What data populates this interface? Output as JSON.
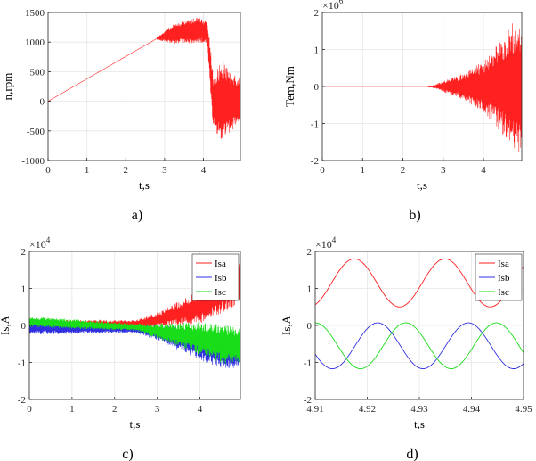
{
  "colors": {
    "red": "#ff2020",
    "blue": "#3030e0",
    "green": "#18dd18",
    "grid": "#e6e6e6",
    "axis": "#262626"
  },
  "chart_data": [
    {
      "id": "a",
      "type": "line",
      "caption": "a)",
      "xlabel": "t,s",
      "ylabel": "n,rpm",
      "xlim": [
        0,
        4.95
      ],
      "ylim": [
        -1000,
        1500
      ],
      "xticks": [
        "0",
        "1",
        "2",
        "3",
        "4"
      ],
      "xtick_values": [
        0,
        1,
        2,
        3,
        4
      ],
      "yticks": [
        "1500",
        "1000",
        "500",
        "0",
        "-500",
        "-1000"
      ],
      "ytick_values": [
        1500,
        1000,
        500,
        0,
        -500,
        -1000
      ],
      "exponent": "",
      "series": [
        {
          "name": "n",
          "color": "red",
          "model": "speed",
          "keypoints": [
            [
              0,
              0
            ],
            [
              2.8,
              1060
            ],
            [
              3.3,
              1150
            ],
            [
              3.9,
              1200
            ],
            [
              4.1,
              1150
            ],
            [
              4.25,
              0
            ],
            [
              4.7,
              0
            ],
            [
              4.95,
              0
            ]
          ],
          "envelope": [
            [
              2.8,
              20
            ],
            [
              3.2,
              160
            ],
            [
              3.8,
              220
            ],
            [
              4.1,
              200
            ],
            [
              4.2,
              400
            ],
            [
              4.5,
              700
            ],
            [
              4.7,
              500
            ],
            [
              4.95,
              400
            ]
          ]
        }
      ]
    },
    {
      "id": "b",
      "type": "line",
      "caption": "b)",
      "xlabel": "t,s",
      "ylabel": "Tem,Nm",
      "xlim": [
        0,
        4.95
      ],
      "ylim": [
        -2,
        2
      ],
      "xticks": [
        "0",
        "1",
        "2",
        "3",
        "4"
      ],
      "xtick_values": [
        0,
        1,
        2,
        3,
        4
      ],
      "yticks": [
        "2",
        "1",
        "0",
        "-1",
        "-2"
      ],
      "ytick_values": [
        2,
        1,
        0,
        -1,
        -2
      ],
      "exponent": "×10",
      "exponent_power": "6",
      "series": [
        {
          "name": "Tem",
          "color": "red",
          "model": "torque",
          "envelope": [
            [
              0,
              0
            ],
            [
              2.6,
              0
            ],
            [
              2.8,
              0.05
            ],
            [
              3.0,
              0.15
            ],
            [
              3.5,
              0.35
            ],
            [
              4.0,
              0.7
            ],
            [
              4.4,
              1.2
            ],
            [
              4.7,
              1.7
            ],
            [
              4.95,
              1.9
            ]
          ]
        }
      ]
    },
    {
      "id": "c",
      "type": "line",
      "caption": "c)",
      "xlabel": "t,s",
      "ylabel": "Is,A",
      "xlim": [
        0,
        4.95
      ],
      "ylim": [
        -2,
        2
      ],
      "xticks": [
        "0",
        "1",
        "2",
        "3",
        "4"
      ],
      "xtick_values": [
        0,
        1,
        2,
        3,
        4
      ],
      "yticks": [
        "2",
        "1",
        "0",
        "-1",
        "-2"
      ],
      "ytick_values": [
        2,
        1,
        0,
        -1,
        -2
      ],
      "exponent": "×10",
      "exponent_power": "4",
      "legend": [
        "Isa",
        "Isb",
        "Isc"
      ],
      "legend_position": "top-right",
      "series": [
        {
          "name": "Isa",
          "color": "red",
          "model": "phase_long",
          "offset": [
            [
              0,
              0
            ],
            [
              2.5,
              0.05
            ],
            [
              3.0,
              0.15
            ],
            [
              4.0,
              0.5
            ],
            [
              4.5,
              0.9
            ],
            [
              4.95,
              1.2
            ]
          ],
          "envelope": [
            [
              0,
              0.15
            ],
            [
              2.5,
              0.1
            ],
            [
              3.0,
              0.2
            ],
            [
              4.0,
              0.45
            ],
            [
              4.5,
              0.6
            ],
            [
              4.95,
              0.6
            ]
          ]
        },
        {
          "name": "Isb",
          "color": "blue",
          "model": "phase_long",
          "offset": [
            [
              0,
              -0.05
            ],
            [
              2.5,
              -0.1
            ],
            [
              3.0,
              -0.2
            ],
            [
              4.0,
              -0.5
            ],
            [
              4.5,
              -0.7
            ],
            [
              4.95,
              -0.75
            ]
          ],
          "envelope": [
            [
              0,
              0.2
            ],
            [
              2.5,
              0.1
            ],
            [
              3.0,
              0.2
            ],
            [
              4.0,
              0.45
            ],
            [
              4.5,
              0.5
            ],
            [
              4.95,
              0.45
            ]
          ]
        },
        {
          "name": "Isc",
          "color": "green",
          "model": "phase_long",
          "offset": [
            [
              0,
              0.1
            ],
            [
              2.5,
              -0.05
            ],
            [
              3.0,
              -0.15
            ],
            [
              4.0,
              -0.35
            ],
            [
              4.5,
              -0.5
            ],
            [
              4.95,
              -0.55
            ]
          ],
          "envelope": [
            [
              0,
              0.15
            ],
            [
              2.5,
              0.1
            ],
            [
              3.0,
              0.2
            ],
            [
              4.0,
              0.45
            ],
            [
              4.5,
              0.55
            ],
            [
              4.95,
              0.5
            ]
          ]
        }
      ]
    },
    {
      "id": "d",
      "type": "line",
      "caption": "d)",
      "xlabel": "t,s",
      "ylabel": "Is,A",
      "xlim": [
        4.91,
        4.95
      ],
      "ylim": [
        -2,
        2
      ],
      "xticks": [
        "4.91",
        "4.92",
        "4.93",
        "4.94",
        "4.95"
      ],
      "xtick_values": [
        4.91,
        4.92,
        4.93,
        4.94,
        4.95
      ],
      "yticks": [
        "2",
        "1",
        "0",
        "-1",
        "-2"
      ],
      "ytick_values": [
        2,
        1,
        0,
        -1,
        -2
      ],
      "exponent": "×10",
      "exponent_power": "4",
      "legend": [
        "Isa",
        "Isb",
        "Isc"
      ],
      "legend_position": "top-right",
      "series": [
        {
          "name": "Isa",
          "color": "red",
          "model": "sine",
          "mean": 1.15,
          "amp": 0.65,
          "period": 0.0174,
          "peak_t": 4.9175
        },
        {
          "name": "Isb",
          "color": "blue",
          "model": "sine",
          "mean": -0.55,
          "amp": 0.62,
          "period": 0.0174,
          "peak_t": 4.922
        },
        {
          "name": "Isc",
          "color": "green",
          "model": "sine",
          "mean": -0.55,
          "amp": 0.62,
          "period": 0.0174,
          "peak_t": 4.91
        }
      ]
    }
  ]
}
